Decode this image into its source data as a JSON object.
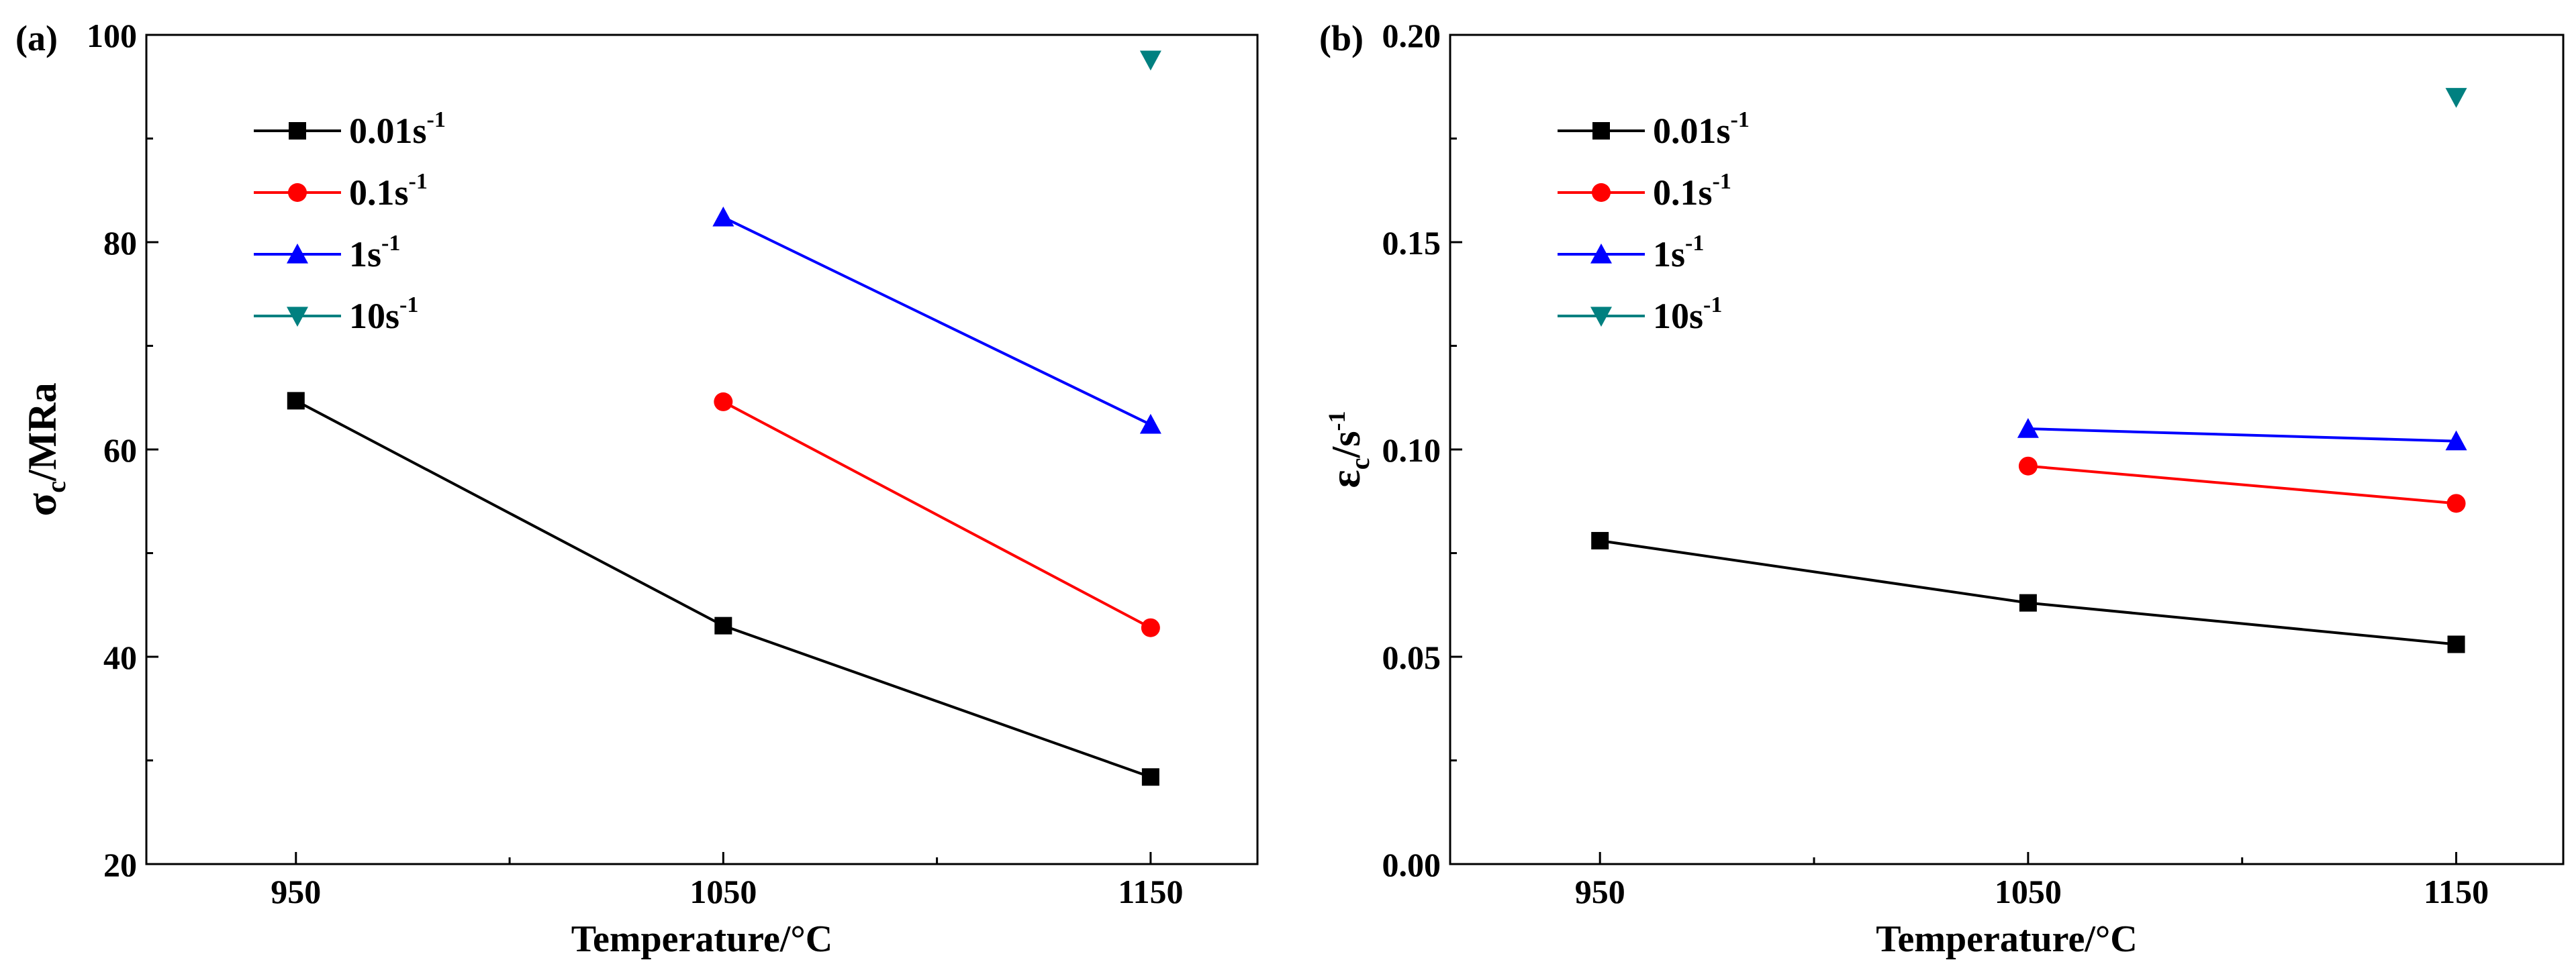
{
  "colors": {
    "0.01": "#000000",
    "0.1": "#ff0000",
    "1": "#0000ff",
    "10": "#008080"
  },
  "chart_data": [
    {
      "type": "line",
      "panel_label": "(a)",
      "xlabel": "Temperature/°C",
      "ylabel": {
        "main": "σ",
        "sub": "c",
        "rest": "/MRa"
      },
      "categories": [
        "950",
        "1050",
        "1150"
      ],
      "x": [
        950,
        1050,
        1150
      ],
      "xlim": [
        915,
        1175
      ],
      "ylim": [
        20,
        100
      ],
      "yticks": [
        20,
        40,
        60,
        80,
        100
      ],
      "ytick_labels": [
        "20",
        "40",
        "60",
        "80",
        "100"
      ],
      "grid": false,
      "legend_position": "top-left",
      "series": [
        {
          "key": "0.01",
          "name_base": "0.01s",
          "name_sup": "-1",
          "marker": "square",
          "points": [
            [
              950,
              64.7
            ],
            [
              1050,
              43.0
            ],
            [
              1150,
              28.4
            ]
          ]
        },
        {
          "key": "0.1",
          "name_base": "0.1s",
          "name_sup": "-1",
          "marker": "circle",
          "points": [
            [
              1050,
              64.6
            ],
            [
              1150,
              42.8
            ]
          ]
        },
        {
          "key": "1",
          "name_base": "1s",
          "name_sup": "-1",
          "marker": "triangle-up",
          "points": [
            [
              1050,
              82.4
            ],
            [
              1150,
              62.4
            ]
          ]
        },
        {
          "key": "10",
          "name_base": "10s",
          "name_sup": "-1",
          "marker": "triangle-down",
          "points": [
            [
              1150,
              97.6
            ]
          ]
        }
      ]
    },
    {
      "type": "line",
      "panel_label": "(b)",
      "xlabel": "Temperature/°C",
      "ylabel": {
        "main": "ε",
        "sub": "c",
        "rest": "/s",
        "sup": "-1"
      },
      "categories": [
        "950",
        "1050",
        "1150"
      ],
      "x": [
        950,
        1050,
        1150
      ],
      "xlim": [
        915,
        1175
      ],
      "ylim": [
        0,
        0.2
      ],
      "yticks": [
        0,
        0.05,
        0.1,
        0.15,
        0.2
      ],
      "ytick_labels": [
        "0.00",
        "0.05",
        "0.10",
        "0.15",
        "0.20"
      ],
      "grid": false,
      "legend_position": "top-left",
      "series": [
        {
          "key": "0.01",
          "name_base": "0.01s",
          "name_sup": "-1",
          "marker": "square",
          "points": [
            [
              950,
              0.078
            ],
            [
              1050,
              0.063
            ],
            [
              1150,
              0.053
            ]
          ]
        },
        {
          "key": "0.1",
          "name_base": "0.1s",
          "name_sup": "-1",
          "marker": "circle",
          "points": [
            [
              1050,
              0.096
            ],
            [
              1150,
              0.087
            ]
          ]
        },
        {
          "key": "1",
          "name_base": "1s",
          "name_sup": "-1",
          "marker": "triangle-up",
          "points": [
            [
              1050,
              0.105
            ],
            [
              1150,
              0.102
            ]
          ]
        },
        {
          "key": "10",
          "name_base": "10s",
          "name_sup": "-1",
          "marker": "triangle-down",
          "points": [
            [
              1150,
              0.185
            ]
          ]
        }
      ]
    }
  ]
}
